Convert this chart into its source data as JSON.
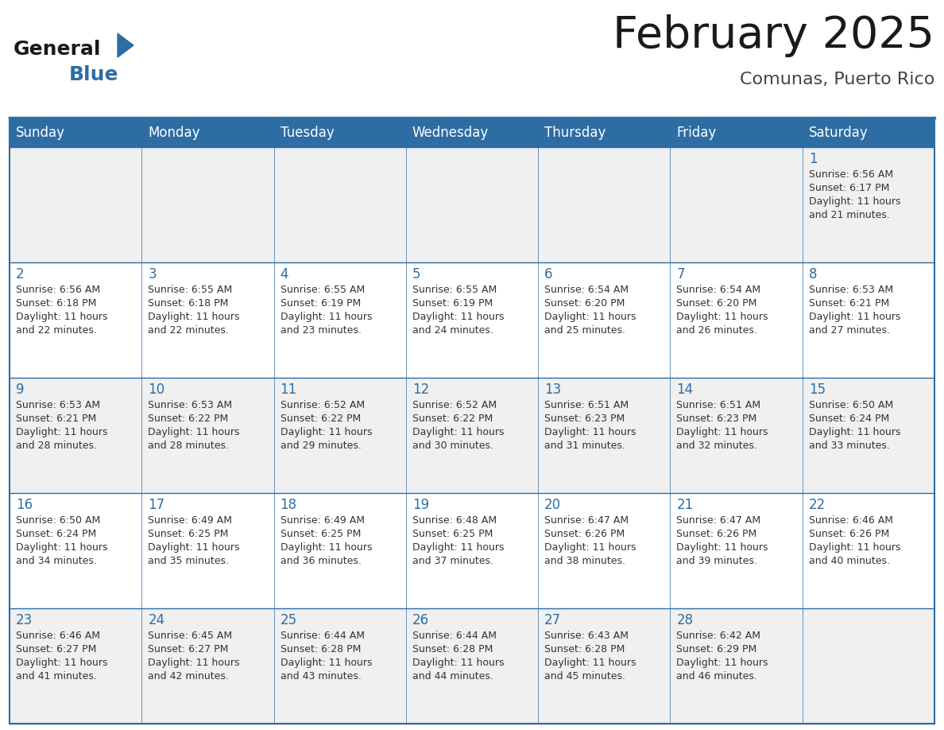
{
  "title": "February 2025",
  "subtitle": "Comunas, Puerto Rico",
  "days_of_week": [
    "Sunday",
    "Monday",
    "Tuesday",
    "Wednesday",
    "Thursday",
    "Friday",
    "Saturday"
  ],
  "header_bg": "#2e6da4",
  "header_text_color": "#ffffff",
  "cell_bg_odd": "#f0f0f0",
  "cell_bg_even": "#ffffff",
  "day_number_color": "#2e6da4",
  "cell_text_color": "#333333",
  "border_color": "#2e6da4",
  "title_color": "#1a1a1a",
  "subtitle_color": "#444444",
  "calendar_data": [
    [
      null,
      null,
      null,
      null,
      null,
      null,
      {
        "day": 1,
        "sunrise": "6:56 AM",
        "sunset": "6:17 PM",
        "daylight": "11 hours and 21 minutes."
      }
    ],
    [
      {
        "day": 2,
        "sunrise": "6:56 AM",
        "sunset": "6:18 PM",
        "daylight": "11 hours and 22 minutes."
      },
      {
        "day": 3,
        "sunrise": "6:55 AM",
        "sunset": "6:18 PM",
        "daylight": "11 hours and 22 minutes."
      },
      {
        "day": 4,
        "sunrise": "6:55 AM",
        "sunset": "6:19 PM",
        "daylight": "11 hours and 23 minutes."
      },
      {
        "day": 5,
        "sunrise": "6:55 AM",
        "sunset": "6:19 PM",
        "daylight": "11 hours and 24 minutes."
      },
      {
        "day": 6,
        "sunrise": "6:54 AM",
        "sunset": "6:20 PM",
        "daylight": "11 hours and 25 minutes."
      },
      {
        "day": 7,
        "sunrise": "6:54 AM",
        "sunset": "6:20 PM",
        "daylight": "11 hours and 26 minutes."
      },
      {
        "day": 8,
        "sunrise": "6:53 AM",
        "sunset": "6:21 PM",
        "daylight": "11 hours and 27 minutes."
      }
    ],
    [
      {
        "day": 9,
        "sunrise": "6:53 AM",
        "sunset": "6:21 PM",
        "daylight": "11 hours and 28 minutes."
      },
      {
        "day": 10,
        "sunrise": "6:53 AM",
        "sunset": "6:22 PM",
        "daylight": "11 hours and 28 minutes."
      },
      {
        "day": 11,
        "sunrise": "6:52 AM",
        "sunset": "6:22 PM",
        "daylight": "11 hours and 29 minutes."
      },
      {
        "day": 12,
        "sunrise": "6:52 AM",
        "sunset": "6:22 PM",
        "daylight": "11 hours and 30 minutes."
      },
      {
        "day": 13,
        "sunrise": "6:51 AM",
        "sunset": "6:23 PM",
        "daylight": "11 hours and 31 minutes."
      },
      {
        "day": 14,
        "sunrise": "6:51 AM",
        "sunset": "6:23 PM",
        "daylight": "11 hours and 32 minutes."
      },
      {
        "day": 15,
        "sunrise": "6:50 AM",
        "sunset": "6:24 PM",
        "daylight": "11 hours and 33 minutes."
      }
    ],
    [
      {
        "day": 16,
        "sunrise": "6:50 AM",
        "sunset": "6:24 PM",
        "daylight": "11 hours and 34 minutes."
      },
      {
        "day": 17,
        "sunrise": "6:49 AM",
        "sunset": "6:25 PM",
        "daylight": "11 hours and 35 minutes."
      },
      {
        "day": 18,
        "sunrise": "6:49 AM",
        "sunset": "6:25 PM",
        "daylight": "11 hours and 36 minutes."
      },
      {
        "day": 19,
        "sunrise": "6:48 AM",
        "sunset": "6:25 PM",
        "daylight": "11 hours and 37 minutes."
      },
      {
        "day": 20,
        "sunrise": "6:47 AM",
        "sunset": "6:26 PM",
        "daylight": "11 hours and 38 minutes."
      },
      {
        "day": 21,
        "sunrise": "6:47 AM",
        "sunset": "6:26 PM",
        "daylight": "11 hours and 39 minutes."
      },
      {
        "day": 22,
        "sunrise": "6:46 AM",
        "sunset": "6:26 PM",
        "daylight": "11 hours and 40 minutes."
      }
    ],
    [
      {
        "day": 23,
        "sunrise": "6:46 AM",
        "sunset": "6:27 PM",
        "daylight": "11 hours and 41 minutes."
      },
      {
        "day": 24,
        "sunrise": "6:45 AM",
        "sunset": "6:27 PM",
        "daylight": "11 hours and 42 minutes."
      },
      {
        "day": 25,
        "sunrise": "6:44 AM",
        "sunset": "6:28 PM",
        "daylight": "11 hours and 43 minutes."
      },
      {
        "day": 26,
        "sunrise": "6:44 AM",
        "sunset": "6:28 PM",
        "daylight": "11 hours and 44 minutes."
      },
      {
        "day": 27,
        "sunrise": "6:43 AM",
        "sunset": "6:28 PM",
        "daylight": "11 hours and 45 minutes."
      },
      {
        "day": 28,
        "sunrise": "6:42 AM",
        "sunset": "6:29 PM",
        "daylight": "11 hours and 46 minutes."
      },
      null
    ]
  ]
}
